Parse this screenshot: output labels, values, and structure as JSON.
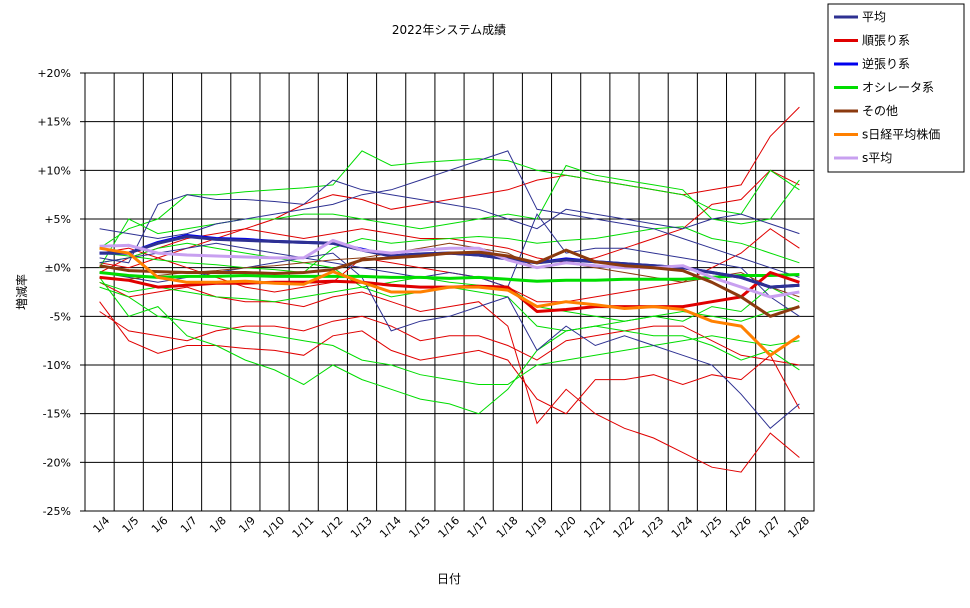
{
  "chart_data": {
    "type": "line",
    "title": "2022年システム成績",
    "xlabel": "日付",
    "ylabel": "増減率",
    "ylim": [
      -25,
      20
    ],
    "y_ticks": [
      "+20%",
      "+15%",
      "+10%",
      "+5%",
      "±0%",
      "-5%",
      "-10%",
      "-15%",
      "-20%",
      "-25%"
    ],
    "y_tick_values": [
      20,
      15,
      10,
      5,
      0,
      -5,
      -10,
      -15,
      -20,
      -25
    ],
    "categories": [
      "1/4",
      "1/5",
      "1/6",
      "1/7",
      "1/8",
      "1/9",
      "1/10",
      "1/11",
      "1/12",
      "1/13",
      "1/14",
      "1/15",
      "1/16",
      "1/17",
      "1/18",
      "1/19",
      "1/20",
      "1/21",
      "1/22",
      "1/23",
      "1/24",
      "1/25",
      "1/26",
      "1/27",
      "1/28"
    ],
    "grid": true,
    "legend_position": "top-right",
    "series": [
      {
        "name": "平均",
        "color": "#2e3192",
        "width": 3,
        "values": [
          1.5,
          1.5,
          2.5,
          3.2,
          2.9,
          2.8,
          2.7,
          2.6,
          2.5,
          1.8,
          1.2,
          1.4,
          1.5,
          1.3,
          0.9,
          0.5,
          0.8,
          0.6,
          0.4,
          0.2,
          0.0,
          -0.5,
          -1.0,
          -2.0,
          -1.8
        ]
      },
      {
        "name": "順張り系",
        "color": "#e00000",
        "width": 3,
        "values": [
          -1.0,
          -1.3,
          -2.0,
          -1.8,
          -1.6,
          -1.6,
          -1.5,
          -1.5,
          -1.4,
          -1.5,
          -1.8,
          -2.0,
          -2.0,
          -1.9,
          -2.0,
          -4.5,
          -4.3,
          -4.0,
          -4.0,
          -4.0,
          -4.0,
          -3.5,
          -3.0,
          -0.5,
          -1.5
        ]
      },
      {
        "name": "逆張り系",
        "color": "#0000ee",
        "width": 3,
        "values": [
          1.5,
          1.5,
          2.6,
          3.3,
          3.0,
          2.9,
          2.7,
          2.6,
          2.5,
          1.9,
          1.2,
          1.4,
          1.5,
          1.3,
          0.9,
          0.5,
          0.9,
          0.6,
          0.4,
          0.2,
          0.0,
          -0.5,
          -1.0,
          -2.0,
          -1.8
        ]
      },
      {
        "name": "オシレータ系",
        "color": "#00dd00",
        "width": 3,
        "values": [
          -0.5,
          -0.8,
          -1.0,
          -0.9,
          -0.9,
          -0.8,
          -0.9,
          -0.9,
          -0.9,
          -0.9,
          -1.0,
          -1.0,
          -1.1,
          -1.0,
          -1.2,
          -1.4,
          -1.3,
          -1.3,
          -1.2,
          -1.2,
          -1.2,
          -1.0,
          -0.8,
          -0.8,
          -0.7
        ]
      },
      {
        "name": "その他",
        "color": "#8b3a0f",
        "width": 3,
        "values": [
          0.2,
          -0.3,
          -0.4,
          -0.5,
          -0.5,
          -0.5,
          -0.6,
          -0.5,
          -0.2,
          0.8,
          1.0,
          1.2,
          1.5,
          1.6,
          1.2,
          0.5,
          1.8,
          0.6,
          0.2,
          0.0,
          -0.3,
          -1.5,
          -3.0,
          -5.0,
          -4.0
        ]
      },
      {
        "name": "s日経平均株価",
        "color": "#ff8000",
        "width": 3,
        "values": [
          2.0,
          1.5,
          -1.0,
          -1.5,
          -1.5,
          -1.4,
          -1.6,
          -1.7,
          -0.4,
          -1.5,
          -2.5,
          -2.5,
          -2.0,
          -2.0,
          -2.3,
          -4.0,
          -3.5,
          -3.8,
          -4.2,
          -4.0,
          -4.3,
          -5.5,
          -6.0,
          -9.0,
          -7.0
        ]
      },
      {
        "name": "s平均",
        "color": "#c8a0f0",
        "width": 3,
        "values": [
          2.2,
          2.3,
          1.5,
          1.3,
          1.2,
          1.1,
          1.0,
          1.0,
          2.8,
          1.8,
          1.5,
          1.8,
          2.0,
          2.0,
          0.8,
          0.0,
          0.5,
          0.2,
          0.0,
          0.0,
          0.2,
          -1.0,
          -2.0,
          -3.0,
          -2.5
        ]
      }
    ],
    "background_lines": [
      {
        "color": "#e00000",
        "values": [
          -3.5,
          -7.5,
          -8.8,
          -8.0,
          -8.0,
          -8.3,
          -8.5,
          -9.0,
          -7.0,
          -6.5,
          -8.5,
          -9.5,
          -9.0,
          -8.5,
          -9.5,
          -13.5,
          -15.0,
          -11.5,
          -11.5,
          -11.0,
          -12.0,
          -11.0,
          -11.5,
          -9.0,
          -14.5
        ]
      },
      {
        "color": "#e00000",
        "values": [
          -1.5,
          -3.0,
          -2.5,
          -2.0,
          -3.0,
          -3.5,
          -3.5,
          -4.0,
          -3.0,
          -2.5,
          -3.5,
          -4.5,
          -4.0,
          -3.5,
          -6.0,
          -16.0,
          -12.5,
          -15.0,
          -16.5,
          -17.5,
          -19.0,
          -20.5,
          -21.0,
          -17.0,
          -19.5
        ]
      },
      {
        "color": "#e00000",
        "values": [
          0.5,
          0.0,
          1.0,
          2.0,
          3.0,
          4.0,
          5.0,
          6.5,
          7.5,
          7.0,
          6.0,
          6.5,
          7.0,
          7.5,
          8.0,
          9.0,
          9.5,
          9.0,
          8.5,
          8.0,
          7.5,
          8.0,
          8.5,
          13.5,
          16.5
        ]
      },
      {
        "color": "#e00000",
        "values": [
          -0.5,
          1.0,
          2.0,
          3.0,
          3.5,
          4.0,
          3.5,
          3.0,
          3.5,
          4.0,
          3.5,
          3.0,
          3.0,
          2.5,
          2.0,
          1.0,
          0.5,
          1.0,
          2.0,
          3.0,
          4.0,
          6.5,
          7.0,
          10.0,
          8.5
        ]
      },
      {
        "color": "#e00000",
        "values": [
          -4.5,
          -6.5,
          -7.0,
          -7.5,
          -6.5,
          -6.0,
          -6.0,
          -6.5,
          -5.5,
          -5.0,
          -6.0,
          -7.5,
          -7.0,
          -7.0,
          -8.0,
          -9.5,
          -7.5,
          -7.0,
          -6.5,
          -6.0,
          -6.0,
          -7.5,
          -9.0,
          -9.5,
          -10.0
        ]
      },
      {
        "color": "#e00000",
        "values": [
          1.5,
          2.0,
          1.0,
          0.0,
          -1.0,
          -2.0,
          -2.5,
          -2.0,
          -1.5,
          1.0,
          0.5,
          0.0,
          -0.5,
          -1.0,
          -2.0,
          -3.5,
          -3.5,
          -3.0,
          -2.5,
          -2.0,
          -1.5,
          0.0,
          1.5,
          4.0,
          2.0
        ]
      },
      {
        "color": "#00dd00",
        "values": [
          -1.0,
          -5.0,
          -4.0,
          -7.0,
          -8.0,
          -9.5,
          -10.5,
          -12.0,
          -10.0,
          -11.5,
          -12.5,
          -13.5,
          -14.0,
          -15.0,
          -12.5,
          -8.5,
          -6.5,
          -6.0,
          -6.5,
          -7.0,
          -7.0,
          -8.0,
          -9.5,
          -8.5,
          -10.5
        ]
      },
      {
        "color": "#00dd00",
        "values": [
          2.0,
          4.0,
          5.0,
          7.5,
          7.5,
          7.8,
          8.0,
          8.2,
          8.5,
          12.0,
          10.5,
          10.8,
          11.0,
          11.2,
          11.0,
          10.0,
          9.5,
          9.0,
          8.5,
          8.0,
          7.5,
          6.0,
          5.5,
          10.0,
          8.0
        ]
      },
      {
        "color": "#00dd00",
        "values": [
          0.5,
          1.0,
          2.0,
          2.5,
          2.0,
          1.5,
          1.0,
          0.5,
          0.0,
          -2.0,
          -3.0,
          -2.5,
          -2.0,
          -2.5,
          -3.0,
          -6.0,
          -6.5,
          -6.0,
          -5.5,
          -5.0,
          -5.5,
          -4.0,
          -4.5,
          -2.0,
          -3.5
        ]
      },
      {
        "color": "#00dd00",
        "values": [
          -2.0,
          -3.0,
          -5.0,
          -5.5,
          -6.0,
          -6.5,
          -7.0,
          -7.5,
          -8.0,
          -9.5,
          -10.0,
          -11.0,
          -11.5,
          -12.0,
          -12.0,
          -10.0,
          -9.5,
          -9.0,
          -8.5,
          -8.0,
          -7.5,
          -7.0,
          -7.5,
          -8.0,
          -7.5
        ]
      },
      {
        "color": "#00dd00",
        "values": [
          1.5,
          1.2,
          0.8,
          0.5,
          0.3,
          0.0,
          -0.2,
          -0.5,
          2.0,
          3.0,
          2.5,
          2.8,
          3.0,
          3.2,
          3.0,
          2.5,
          2.8,
          3.0,
          3.5,
          4.0,
          4.2,
          3.0,
          2.5,
          1.5,
          0.5
        ]
      },
      {
        "color": "#00dd00",
        "values": [
          -1.5,
          -2.5,
          -2.0,
          -2.5,
          -3.0,
          -3.2,
          -3.5,
          -3.0,
          -2.5,
          -2.0,
          -1.5,
          -1.0,
          -1.5,
          -1.8,
          -2.0,
          -4.0,
          -4.5,
          -5.0,
          -5.5,
          -5.0,
          -4.5,
          -5.0,
          -5.5,
          -4.5,
          -4.0
        ]
      },
      {
        "color": "#00dd00",
        "values": [
          0.0,
          5.0,
          3.5,
          4.0,
          4.5,
          5.0,
          5.0,
          5.5,
          5.5,
          5.0,
          4.5,
          4.0,
          4.5,
          5.0,
          5.5,
          5.0,
          10.5,
          9.5,
          9.0,
          8.5,
          8.0,
          5.0,
          4.5,
          5.0,
          9.0
        ]
      },
      {
        "color": "#2e3192",
        "values": [
          4.0,
          3.5,
          3.0,
          3.5,
          4.5,
          5.0,
          5.5,
          6.0,
          6.5,
          7.5,
          8.0,
          9.0,
          10.0,
          11.0,
          12.0,
          6.0,
          5.5,
          5.0,
          4.5,
          4.0,
          3.0,
          2.0,
          1.0,
          0.0,
          -1.0
        ]
      },
      {
        "color": "#2e3192",
        "values": [
          1.0,
          0.5,
          6.5,
          7.5,
          7.0,
          7.0,
          6.8,
          6.5,
          9.0,
          8.0,
          7.5,
          7.0,
          6.5,
          6.0,
          5.0,
          4.0,
          6.0,
          5.5,
          5.0,
          4.5,
          4.0,
          5.0,
          5.5,
          4.5,
          3.5
        ]
      },
      {
        "color": "#2e3192",
        "values": [
          -0.5,
          -1.0,
          -1.5,
          -1.0,
          -0.5,
          0.0,
          0.5,
          1.0,
          1.5,
          -1.0,
          -6.5,
          -5.5,
          -5.0,
          -4.0,
          -3.0,
          -8.5,
          -6.0,
          -8.0,
          -7.0,
          -8.0,
          -9.0,
          -10.0,
          -13.0,
          -16.5,
          -14.0
        ]
      },
      {
        "color": "#2e3192",
        "values": [
          0.5,
          1.0,
          1.5,
          2.0,
          2.5,
          2.0,
          1.5,
          1.0,
          0.5,
          0.0,
          -0.5,
          -1.0,
          -0.5,
          -1.0,
          -2.0,
          5.5,
          1.5,
          2.0,
          2.0,
          1.5,
          1.0,
          0.5,
          0.0,
          -3.0,
          -5.0
        ]
      },
      {
        "color": "#8b3a0f",
        "values": [
          -1.0,
          -1.2,
          -0.8,
          -0.5,
          -0.3,
          0.0,
          0.2,
          0.5,
          0.8,
          1.0,
          1.5,
          2.0,
          2.5,
          2.0,
          1.5,
          0.0,
          0.5,
          0.0,
          -0.5,
          -1.0,
          -1.5,
          -1.0,
          -0.5,
          -2.0,
          -3.0
        ]
      }
    ]
  }
}
